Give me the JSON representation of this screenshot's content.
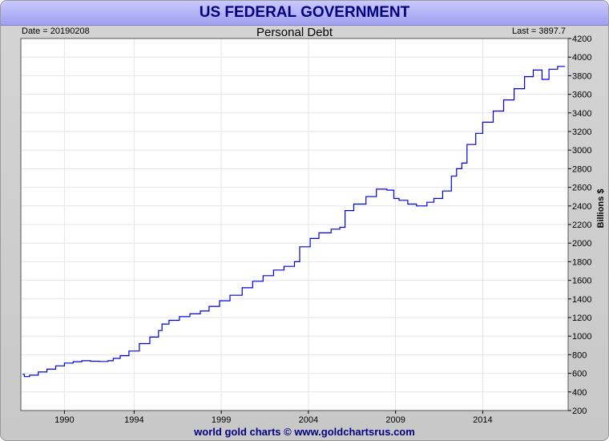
{
  "header": {
    "title": "US FEDERAL GOVERNMENT",
    "subtitle": "Personal Debt",
    "date_label": "Date = 20190208",
    "last_label": "Last = 3897.7"
  },
  "footer": {
    "credit": "world gold charts © www.goldchartsrus.com"
  },
  "colors": {
    "banner": "#a9a9f5",
    "title": "#000080",
    "line": "#0000e0",
    "grid": "#e2e6ee",
    "frame": "#c8c8c8"
  },
  "chart_data": {
    "type": "line",
    "title": "Personal Debt",
    "xlabel": "",
    "ylabel": "Billions $",
    "xlim": [
      1987.5,
      2018.9
    ],
    "ylim": [
      200,
      4200
    ],
    "x_ticks": [
      1990,
      1994,
      1999,
      2004,
      2009,
      2014
    ],
    "y_ticks": [
      200,
      400,
      600,
      800,
      1000,
      1200,
      1400,
      1600,
      1800,
      2000,
      2200,
      2400,
      2600,
      2800,
      3000,
      3200,
      3400,
      3600,
      3800,
      4000,
      4200
    ],
    "grid": true,
    "y_axis_side": "right",
    "series": [
      {
        "x": [
          1987.6,
          1987.7,
          1988.0,
          1988.5,
          1989.0,
          1989.5,
          1990.0,
          1990.5,
          1991.0,
          1991.5,
          1992.0,
          1992.5,
          1992.8,
          1993.2,
          1993.7,
          1994.3,
          1994.9,
          1995.4,
          1995.6,
          1996.0,
          1996.6,
          1997.2,
          1997.8,
          1998.3,
          1998.9,
          1999.5,
          2000.2,
          2000.8,
          2001.4,
          2002.0,
          2002.6,
          2003.2,
          2003.5,
          2004.1,
          2004.6,
          2005.3,
          2005.8,
          2006.1,
          2006.6,
          2007.3,
          2007.9,
          2008.5,
          2008.9,
          2009.2,
          2009.7,
          2010.2,
          2010.8,
          2011.2,
          2011.7,
          2012.2,
          2012.5,
          2012.8,
          2013.1,
          2013.6,
          2014.0,
          2014.6,
          2015.2,
          2015.8,
          2016.4,
          2016.9,
          2017.4,
          2017.8,
          2018.3,
          2018.7
        ],
        "values": [
          590,
          565,
          580,
          615,
          645,
          680,
          710,
          725,
          735,
          730,
          728,
          735,
          760,
          790,
          840,
          920,
          990,
          1060,
          1130,
          1170,
          1210,
          1240,
          1270,
          1320,
          1380,
          1440,
          1520,
          1590,
          1650,
          1710,
          1750,
          1800,
          1960,
          2050,
          2110,
          2150,
          2170,
          2350,
          2420,
          2500,
          2580,
          2570,
          2480,
          2460,
          2420,
          2400,
          2440,
          2480,
          2560,
          2720,
          2800,
          2860,
          3060,
          3180,
          3300,
          3420,
          3540,
          3660,
          3790,
          3860,
          3760,
          3870,
          3900,
          3897.7
        ]
      }
    ]
  }
}
